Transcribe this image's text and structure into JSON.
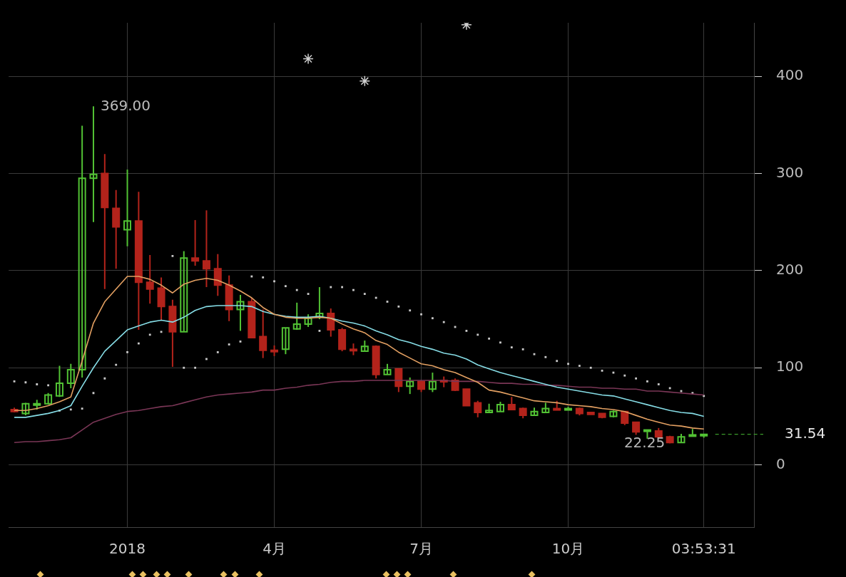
{
  "chart_data": {
    "type": "candlestick",
    "categories": [
      null,
      null,
      null,
      null,
      null,
      null,
      null,
      null,
      null,
      null,
      "2018",
      null,
      null,
      null,
      null,
      null,
      null,
      null,
      null,
      null,
      null,
      null,
      null,
      "4月",
      null,
      null,
      null,
      null,
      null,
      null,
      null,
      null,
      null,
      null,
      null,
      null,
      "7月",
      null,
      null,
      null,
      null,
      null,
      null,
      null,
      null,
      null,
      null,
      null,
      null,
      "10月",
      null,
      null,
      null,
      null,
      null,
      null,
      null,
      null,
      null,
      null,
      null,
      "03:53:31",
      null,
      null,
      null,
      null
    ],
    "ohlc": [
      [
        57,
        59,
        54,
        55
      ],
      [
        53,
        64,
        51,
        63
      ],
      [
        62,
        67,
        57,
        63
      ],
      [
        63,
        74,
        62,
        72
      ],
      [
        71,
        102,
        70,
        84
      ],
      [
        84,
        104,
        79,
        98
      ],
      [
        98,
        349,
        90,
        295
      ],
      [
        295,
        369,
        250,
        299
      ],
      [
        300,
        320,
        181,
        265
      ],
      [
        264,
        283,
        202,
        245
      ],
      [
        242,
        304,
        225,
        251
      ],
      [
        251,
        281,
        139,
        188
      ],
      [
        188,
        216,
        166,
        181
      ],
      [
        182,
        193,
        149,
        163
      ],
      [
        163,
        170,
        101,
        137
      ],
      [
        137,
        220,
        137,
        213
      ],
      [
        213,
        252,
        205,
        210
      ],
      [
        210,
        262,
        183,
        202
      ],
      [
        202,
        217,
        174,
        185
      ],
      [
        185,
        195,
        148,
        160
      ],
      [
        160,
        175,
        138,
        168
      ],
      [
        168,
        172,
        131,
        131
      ],
      [
        132,
        160,
        110,
        118
      ],
      [
        118,
        123,
        112,
        117
      ],
      [
        119,
        141,
        114,
        141
      ],
      [
        140,
        167,
        139,
        145
      ],
      [
        145,
        155,
        142,
        151
      ],
      [
        152,
        183,
        150,
        156
      ],
      [
        156,
        161,
        132,
        139
      ],
      [
        139,
        141,
        117,
        119
      ],
      [
        119,
        125,
        113,
        118
      ],
      [
        117,
        128,
        117,
        122
      ],
      [
        122,
        123,
        89,
        93
      ],
      [
        93,
        104,
        93,
        98
      ],
      [
        99,
        99,
        75,
        81
      ],
      [
        81,
        90,
        73,
        86
      ],
      [
        86,
        87,
        75,
        78
      ],
      [
        78,
        95,
        75,
        86
      ],
      [
        87,
        91,
        80,
        86
      ],
      [
        87,
        89,
        76,
        77
      ],
      [
        78,
        78,
        61,
        61
      ],
      [
        64,
        66,
        49,
        54
      ],
      [
        54,
        63,
        54,
        56
      ],
      [
        55,
        65,
        55,
        62
      ],
      [
        62,
        70,
        57,
        57
      ],
      [
        58,
        59,
        48,
        51
      ],
      [
        51,
        59,
        51,
        55
      ],
      [
        54,
        64,
        54,
        58
      ],
      [
        58,
        66,
        57,
        57
      ],
      [
        57,
        60,
        57,
        58
      ],
      [
        58,
        59,
        51,
        53
      ],
      [
        54,
        54,
        52,
        52
      ],
      [
        53,
        53,
        48,
        49
      ],
      [
        50,
        56,
        49,
        55
      ],
      [
        55,
        55,
        41,
        43
      ],
      [
        44,
        44,
        31,
        34
      ],
      [
        35,
        36,
        27,
        36
      ],
      [
        35,
        38,
        28,
        29
      ],
      [
        29,
        30,
        22.25,
        23
      ],
      [
        23,
        32,
        23,
        29
      ],
      [
        30,
        37,
        30,
        31
      ],
      [
        30,
        32,
        28,
        31.54
      ],
      null,
      null,
      null,
      null
    ],
    "colors": [
      "#b3231b",
      "#52c234",
      "#52c234",
      "#52c234",
      "#52c234",
      "#52c234",
      "#52c234",
      "#52c234",
      "#b3231b",
      "#b3231b",
      "#52c234",
      "#b3231b",
      "#b3231b",
      "#b3231b",
      "#b3231b",
      "#52c234",
      "#b3231b",
      "#b3231b",
      "#b3231b",
      "#b3231b",
      "#52c234",
      "#b3231b",
      "#b3231b",
      "#b3231b",
      "#52c234",
      "#52c234",
      "#52c234",
      "#52c234",
      "#b3231b",
      "#b3231b",
      "#b3231b",
      "#52c234",
      "#b3231b",
      "#52c234",
      "#b3231b",
      "#52c234",
      "#b3231b",
      "#52c234",
      "#b3231b",
      "#b3231b",
      "#b3231b",
      "#b3231b",
      "#52c234",
      "#52c234",
      "#b3231b",
      "#b3231b",
      "#52c234",
      "#52c234",
      "#b3231b",
      "#52c234",
      "#b3231b",
      "#b3231b",
      "#b3231b",
      "#52c234",
      "#b3231b",
      "#b3231b",
      "#52c234",
      "#b3231b",
      "#b3231b",
      "#52c234",
      "#52c234",
      "#52c234",
      null,
      null,
      null,
      null
    ],
    "series": [
      {
        "type": "line",
        "color": "#e3a062",
        "values": [
          56,
          56,
          58,
          61,
          65,
          70,
          107,
          146,
          168,
          181,
          194,
          194,
          191,
          185,
          177,
          186,
          190,
          192,
          190,
          185,
          179,
          172,
          162,
          155,
          152,
          151,
          151,
          152,
          151,
          145,
          140,
          136,
          128,
          124,
          116,
          110,
          104,
          102,
          98,
          95,
          90,
          85,
          77,
          75,
          72,
          69,
          66,
          65,
          64,
          62,
          61,
          60,
          58,
          57,
          55,
          51,
          47,
          44,
          41,
          40,
          38,
          37,
          null,
          null,
          null,
          null
        ]
      },
      {
        "type": "line",
        "color": "#86dde6",
        "values": [
          49,
          49,
          51,
          53,
          56,
          61,
          81,
          100,
          117,
          128,
          139,
          143,
          147,
          149,
          147,
          152,
          159,
          163,
          164,
          164,
          164,
          163,
          158,
          155,
          153,
          152,
          152,
          153,
          151,
          148,
          146,
          143,
          138,
          134,
          129,
          126,
          122,
          119,
          115,
          113,
          109,
          103,
          99,
          95,
          92,
          89,
          86,
          83,
          80,
          78,
          76,
          74,
          72,
          71,
          68,
          65,
          62,
          59,
          56,
          54,
          53,
          50,
          null,
          null,
          null,
          null
        ]
      },
      {
        "type": "line",
        "color": "#7a3656",
        "values": [
          23,
          24,
          24,
          25,
          26,
          28,
          36,
          44,
          48,
          52,
          55,
          56,
          58,
          60,
          61,
          64,
          67,
          70,
          72,
          73,
          74,
          75,
          77,
          77,
          79,
          80,
          82,
          83,
          85,
          86,
          86,
          87,
          87,
          87,
          87,
          87,
          87,
          87,
          87,
          86,
          86,
          86,
          85,
          84,
          84,
          83,
          83,
          82,
          82,
          81,
          80,
          80,
          79,
          79,
          78,
          78,
          76,
          76,
          75,
          74,
          73,
          72,
          null,
          null,
          null,
          null
        ]
      },
      {
        "type": "scatter",
        "color": "#c8c8c8",
        "marker": "square",
        "values": [
          86,
          85,
          83,
          82,
          56,
          57,
          58,
          74,
          89,
          103,
          116,
          125,
          134,
          137,
          215,
          100,
          100,
          109,
          116,
          124,
          127,
          194,
          193,
          189,
          184,
          180,
          176,
          138,
          183,
          183,
          180,
          176,
          172,
          168,
          163,
          159,
          155,
          151,
          147,
          142,
          138,
          134,
          130,
          126,
          121,
          119,
          114,
          111,
          107,
          104,
          102,
          100,
          97,
          95,
          92,
          89,
          86,
          83,
          79,
          76,
          74,
          71,
          null,
          null,
          null,
          null
        ]
      },
      {
        "type": "scatter",
        "color": "#d0d0d0",
        "marker": "cross",
        "values": [
          null,
          null,
          null,
          null,
          null,
          null,
          null,
          null,
          null,
          null,
          null,
          null,
          null,
          null,
          null,
          null,
          null,
          null,
          null,
          null,
          null,
          null,
          null,
          null,
          null,
          null,
          418,
          null,
          null,
          null,
          null,
          395,
          null,
          null,
          null,
          null,
          null,
          null,
          null,
          null,
          453,
          null,
          null,
          null,
          null,
          null,
          null,
          null,
          null,
          null,
          null,
          null,
          null,
          null,
          null,
          null,
          null,
          null,
          null,
          null,
          null,
          null,
          null,
          null,
          null,
          null
        ]
      }
    ],
    "ylim": [
      -64,
      455
    ],
    "yticks": [
      0,
      100,
      200,
      300,
      400
    ],
    "grid": true,
    "legend": false,
    "ref_lines": [
      {
        "axis": "y",
        "value": 31.54,
        "label": "31.54",
        "color": "#3a9a2a",
        "line_style": "dashed"
      }
    ],
    "annotations": [
      "369.00",
      "22.25"
    ]
  }
}
